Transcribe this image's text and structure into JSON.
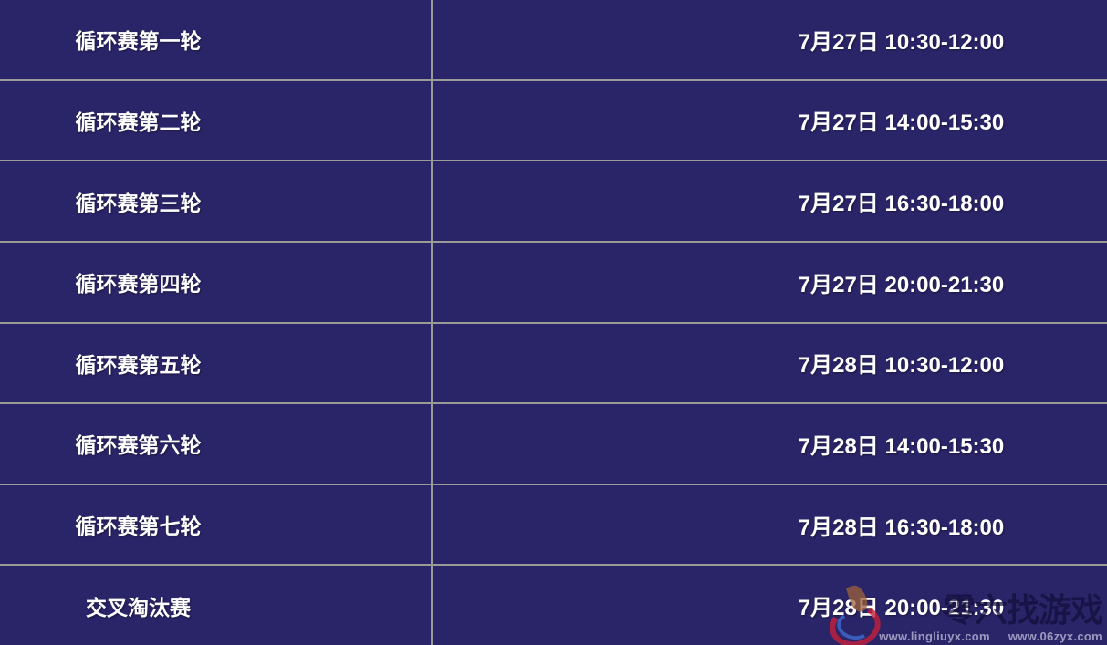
{
  "schedule": {
    "rows": [
      {
        "round": "循环赛第一轮",
        "time": "7月27日 10:30-12:00"
      },
      {
        "round": "循环赛第二轮",
        "time": "7月27日 14:00-15:30"
      },
      {
        "round": "循环赛第三轮",
        "time": "7月27日 16:30-18:00"
      },
      {
        "round": "循环赛第四轮",
        "time": "7月27日 20:00-21:30"
      },
      {
        "round": "循环赛第五轮",
        "time": "7月28日 10:30-12:00"
      },
      {
        "round": "循环赛第六轮",
        "time": "7月28日 14:00-15:30"
      },
      {
        "round": "循环赛第七轮",
        "time": "7月28日 16:30-18:00"
      },
      {
        "round": "交叉淘汰赛",
        "time": "7月28日 20:00-21:30"
      }
    ]
  },
  "watermark": {
    "brand": "零六找游戏",
    "url1": "www.lingliuyx.com",
    "url2": "www.06zyx.com",
    "logo_icon": "flame-swirl-logo"
  },
  "colors": {
    "background": "#2A2568",
    "divider": "#9B9B95",
    "text": "#FFFFFF",
    "watermark_brand": "rgba(18,14,58,0.72)",
    "watermark_url": "rgba(185,182,214,0.80)",
    "watermark_logo_red": "#C6203A",
    "watermark_logo_blue": "#4070D6",
    "watermark_logo_flame": "#9C623A"
  }
}
